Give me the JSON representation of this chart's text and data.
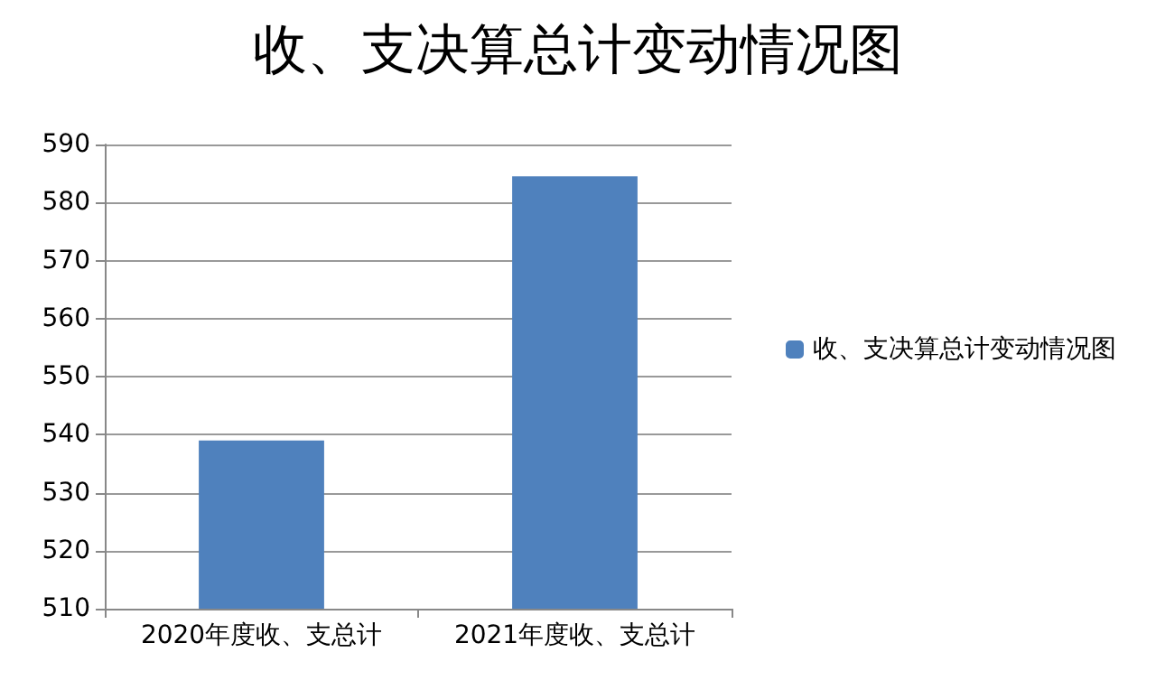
{
  "chart_data": {
    "type": "bar",
    "title": "收、支决算总计变动情况图",
    "categories": [
      "2020年度收、支总计",
      "2021年度收、支总计"
    ],
    "series": [
      {
        "name": "收、支决算总计变动情况图",
        "color": "#4f81bd",
        "values": [
          539,
          584.5
        ]
      }
    ],
    "ylim": [
      510,
      590
    ],
    "yticks": [
      510,
      520,
      530,
      540,
      550,
      560,
      570,
      580,
      590
    ],
    "grid": "y",
    "legend": "right"
  }
}
